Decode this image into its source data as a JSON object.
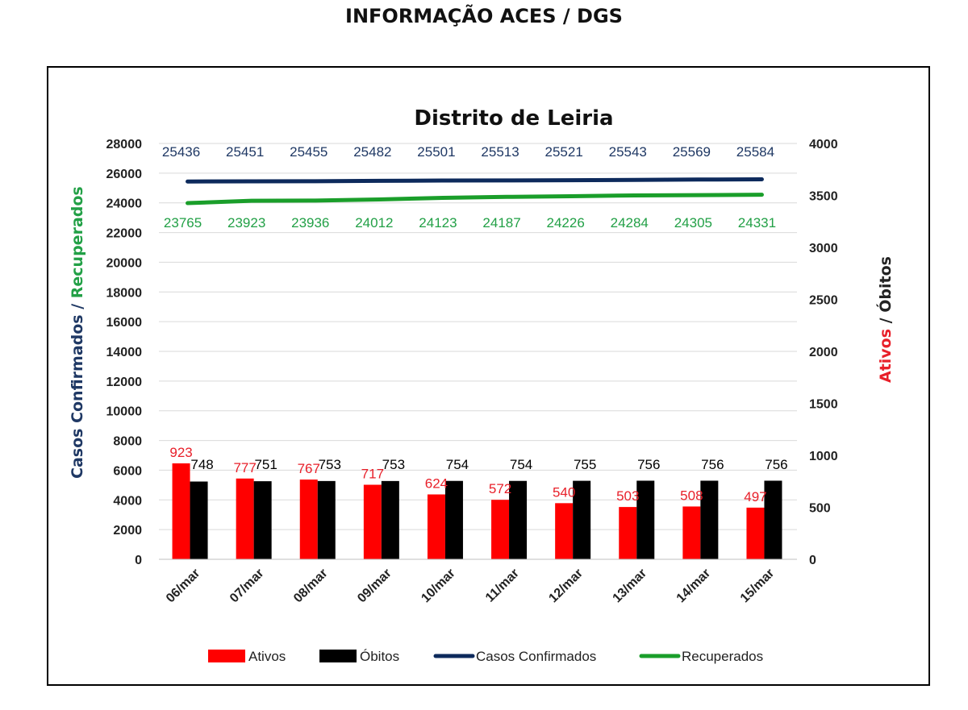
{
  "page": {
    "title": "INFORMAÇÃO ACES / DGS"
  },
  "chart_data": {
    "type": "bar",
    "title": "Distrito de Leiria",
    "categories": [
      "06/mar",
      "07/mar",
      "08/mar",
      "09/mar",
      "10/mar",
      "11/mar",
      "12/mar",
      "13/mar",
      "14/mar",
      "15/mar"
    ],
    "ylabel_left": [
      "Casos Confirmados / ",
      "Recuperados"
    ],
    "ylabel_right": [
      "Ativos",
      " / Óbitos"
    ],
    "ylim_left": [
      0,
      28000
    ],
    "yticks_left": [
      0,
      2000,
      4000,
      6000,
      8000,
      10000,
      12000,
      14000,
      16000,
      18000,
      20000,
      22000,
      24000,
      26000,
      28000
    ],
    "ylim_right": [
      0,
      4000
    ],
    "yticks_right": [
      0,
      500,
      1000,
      1500,
      2000,
      2500,
      3000,
      3500,
      4000
    ],
    "series": [
      {
        "name": "Ativos",
        "type": "bar",
        "axis": "right",
        "color": "#ff0000",
        "label_color": "#e8202a",
        "values": [
          923,
          777,
          767,
          717,
          624,
          572,
          540,
          503,
          508,
          497
        ]
      },
      {
        "name": "Óbitos",
        "type": "bar",
        "axis": "right",
        "color": "#000000",
        "label_color": "#000000",
        "values": [
          748,
          751,
          753,
          753,
          754,
          754,
          755,
          756,
          756,
          756
        ]
      },
      {
        "name": "Casos Confirmados",
        "type": "line",
        "axis": "left",
        "color": "#0d2a5c",
        "label_color": "#1f3864",
        "values": [
          25436,
          25451,
          25455,
          25482,
          25501,
          25513,
          25521,
          25543,
          25569,
          25584
        ]
      },
      {
        "name": "Recuperados",
        "type": "line",
        "axis": "left",
        "color": "#1a9e2a",
        "label_color": "#22a046",
        "values": [
          23765,
          23923,
          23936,
          24012,
          24123,
          24187,
          24226,
          24284,
          24305,
          24331
        ]
      }
    ],
    "grid": true,
    "legend": "bottom"
  }
}
